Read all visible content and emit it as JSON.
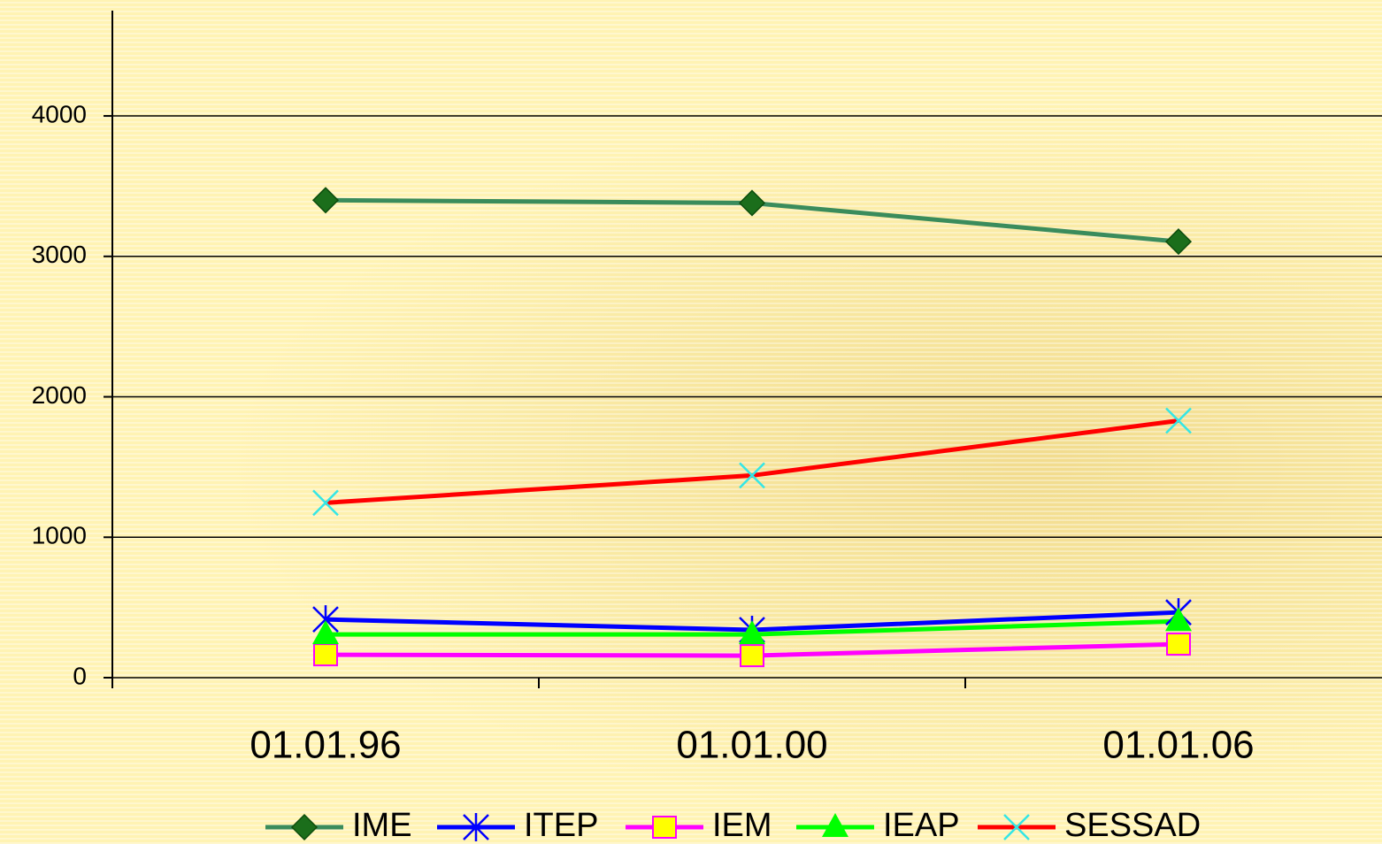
{
  "chart_data": {
    "type": "line",
    "categories": [
      "01.01.96",
      "01.01.00",
      "01.01.06"
    ],
    "series": [
      {
        "name": "IME",
        "color": "#3a8c5c",
        "marker": "diamond",
        "marker_color": "#1b6e1b",
        "values": [
          3400,
          3380,
          3105
        ]
      },
      {
        "name": "ITEP",
        "color": "#0000ff",
        "marker": "star",
        "marker_color": "#0000ff",
        "values": [
          415,
          340,
          465
        ]
      },
      {
        "name": "IEM",
        "color": "#ff00ff",
        "marker": "square",
        "marker_color": "#ffff00",
        "values": [
          163,
          157,
          239
        ]
      },
      {
        "name": "IEAP",
        "color": "#00ff00",
        "marker": "triangle",
        "marker_color": "#00ff00",
        "values": [
          308,
          308,
          402
        ]
      },
      {
        "name": "SESSAD",
        "color": "#ff0000",
        "marker": "x",
        "marker_color": "#33e6e6",
        "values": [
          1245,
          1440,
          1830
        ]
      }
    ],
    "ylim": [
      0,
      4750
    ],
    "yticks": [
      0,
      1000,
      2000,
      3000,
      4000
    ],
    "grid": true,
    "legend": "bottom"
  }
}
